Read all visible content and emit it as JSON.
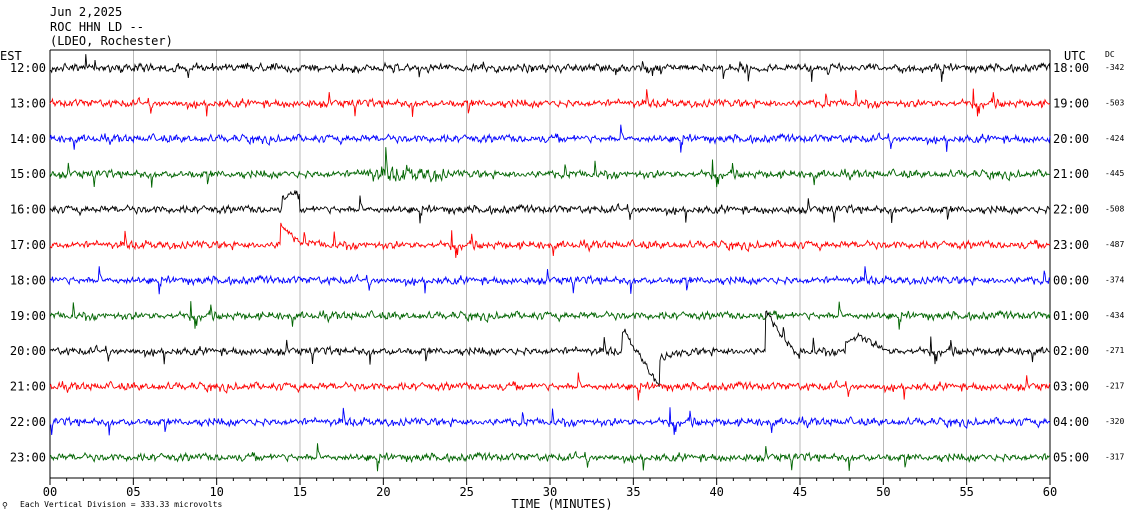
{
  "header": {
    "date": "Jun 2,2025",
    "station": "ROC HHN LD --",
    "network": "(LDEO, Rochester)"
  },
  "left_timezone": "EST",
  "right_timezone": "UTC",
  "dc_label": "DC",
  "footer": {
    "scale_note": "Each Vertical Division =  333.33 microvolts"
  },
  "colors": {
    "trace_cycle": [
      "#000000",
      "#ff0000",
      "#0000ff",
      "#006400"
    ],
    "grid": "#000000",
    "background": "#ffffff"
  },
  "chart_data": {
    "type": "line",
    "title": "Jun 2,2025",
    "xlabel": "TIME (MINUTES)",
    "ylabel": "",
    "xlim": [
      0,
      60
    ],
    "x_ticks": [
      "00",
      "05",
      "10",
      "15",
      "20",
      "25",
      "30",
      "35",
      "40",
      "45",
      "50",
      "55",
      "60"
    ],
    "grid": "vertical lines every 5 minutes",
    "series": [
      {
        "local": "12:00",
        "utc": "18:00",
        "dc": "-342",
        "color": "#000000"
      },
      {
        "local": "13:00",
        "utc": "19:00",
        "dc": "-503",
        "color": "#ff0000"
      },
      {
        "local": "14:00",
        "utc": "20:00",
        "dc": "-424",
        "color": "#0000ff"
      },
      {
        "local": "15:00",
        "utc": "21:00",
        "dc": "-445",
        "color": "#006400"
      },
      {
        "local": "16:00",
        "utc": "22:00",
        "dc": "-508",
        "color": "#000000"
      },
      {
        "local": "17:00",
        "utc": "23:00",
        "dc": "-487",
        "color": "#ff0000"
      },
      {
        "local": "18:00",
        "utc": "00:00",
        "dc": "-374",
        "color": "#0000ff"
      },
      {
        "local": "19:00",
        "utc": "01:00",
        "dc": "-434",
        "color": "#006400"
      },
      {
        "local": "20:00",
        "utc": "02:00",
        "dc": "-271",
        "color": "#000000"
      },
      {
        "local": "21:00",
        "utc": "03:00",
        "dc": "-217",
        "color": "#ff0000"
      },
      {
        "local": "22:00",
        "utc": "04:00",
        "dc": "-320",
        "color": "#0000ff"
      },
      {
        "local": "23:00",
        "utc": "05:00",
        "dc": "-317",
        "color": "#006400"
      }
    ]
  }
}
